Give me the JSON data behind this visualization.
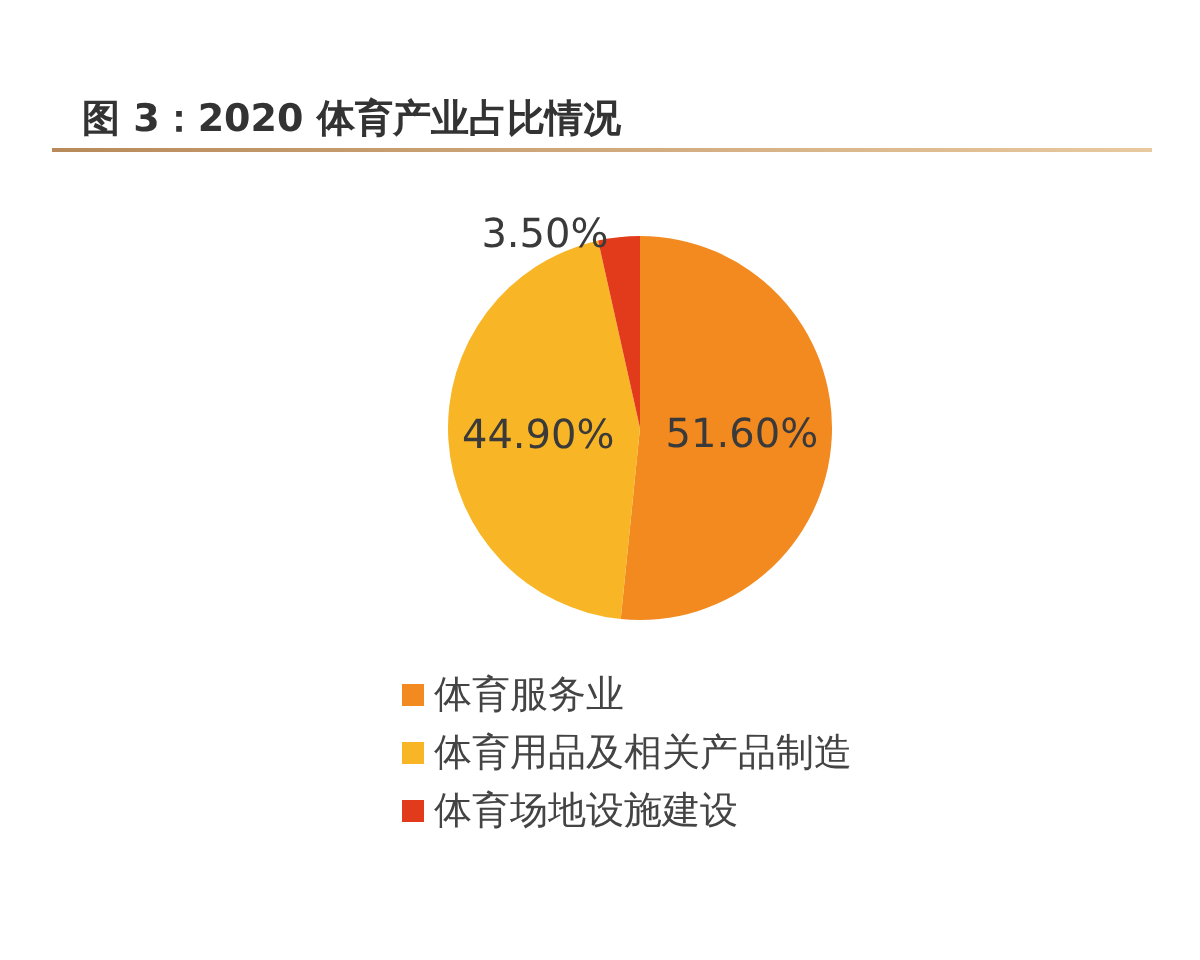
{
  "chart_data": {
    "type": "pie",
    "title": "图 3：2020 体育产业占比情况",
    "categories": [
      "体育服务业",
      "体育用品及相关产品制造",
      "体育场地设施建设"
    ],
    "values": [
      51.6,
      44.9,
      3.5
    ],
    "colors": [
      "#f28a20",
      "#f8b525",
      "#e23b1c"
    ],
    "value_labels": [
      "51.60%",
      "44.90%",
      "3.50%"
    ],
    "legend": "bottom"
  }
}
